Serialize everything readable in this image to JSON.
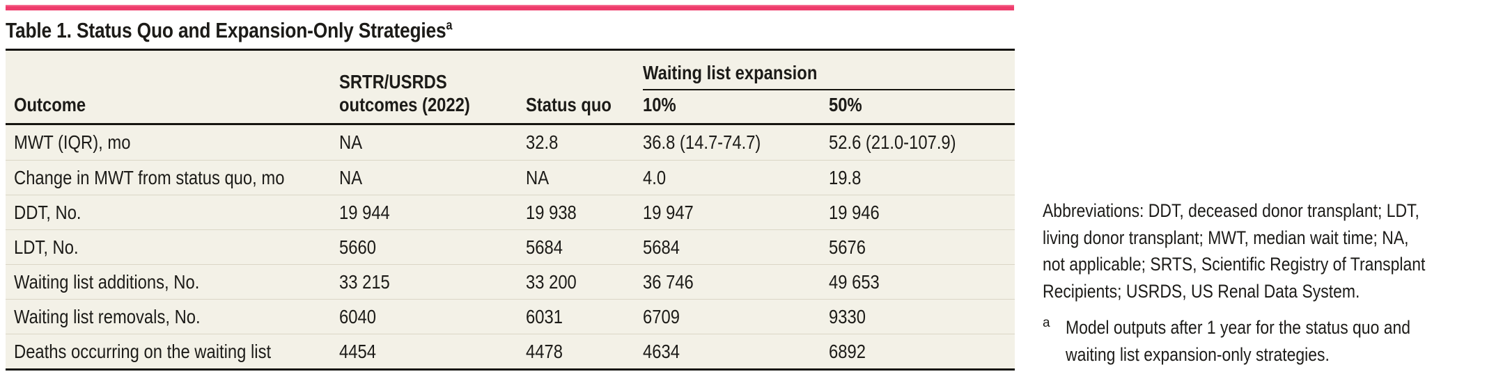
{
  "colors": {
    "accent_pink": "#ee3c6c",
    "table_background": "#f3f1e7",
    "rule_dark": "#15140f",
    "row_hairline": "#dad6c6",
    "text": "#1c1b18"
  },
  "title": {
    "text": "Table 1. Status Quo and Expansion-Only Strategies",
    "footnote_marker": "a"
  },
  "table": {
    "header": {
      "outcome": "Outcome",
      "srtr_line1": "SRTR/USRDS",
      "srtr_line2": "outcomes (2022)",
      "status_quo": "Status quo",
      "spanner": "Waiting list expansion",
      "pct10": "10%",
      "pct50": "50%"
    },
    "rows": [
      {
        "outcome": "MWT (IQR), mo",
        "srtr": "NA",
        "status_quo": "32.8",
        "pct10": "36.8 (14.7-74.7)",
        "pct50": "52.6 (21.0-107.9)"
      },
      {
        "outcome": "Change in MWT from status quo, mo",
        "srtr": "NA",
        "status_quo": "NA",
        "pct10": "4.0",
        "pct50": "19.8"
      },
      {
        "outcome": "DDT, No.",
        "srtr": "19 944",
        "status_quo": "19 938",
        "pct10": "19 947",
        "pct50": "19 946"
      },
      {
        "outcome": "LDT, No.",
        "srtr": "5660",
        "status_quo": "5684",
        "pct10": "5684",
        "pct50": "5676"
      },
      {
        "outcome": "Waiting list additions, No.",
        "srtr": "33 215",
        "status_quo": "33 200",
        "pct10": "36 746",
        "pct50": "49 653"
      },
      {
        "outcome": "Waiting list removals, No.",
        "srtr": "6040",
        "status_quo": "6031",
        "pct10": "6709",
        "pct50": "9330"
      },
      {
        "outcome": "Deaths occurring on the waiting list",
        "srtr": "4454",
        "status_quo": "4478",
        "pct10": "4634",
        "pct50": "6892"
      }
    ]
  },
  "footnotes": {
    "abbreviations_lines": [
      "Abbreviations: DDT, deceased donor transplant; LDT,",
      "living donor transplant; MWT, median wait time; NA,",
      "not applicable; SRTS, Scientific Registry of Transplant",
      "Recipients; USRDS, US Renal Data System."
    ],
    "a_marker": "a",
    "a_lines": [
      "Model outputs after 1 year for the status quo and",
      "waiting list expansion-only strategies."
    ]
  }
}
